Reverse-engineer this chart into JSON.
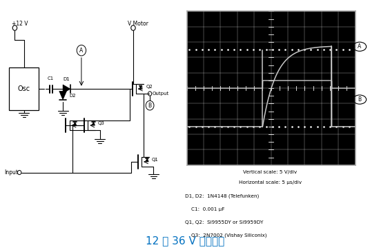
{
  "title": "12 至 36 V 电机驱动",
  "title_color": "#0070C0",
  "title_fontsize": 11,
  "components_text": [
    "D1, D2:  1N4148 (Telefunken)",
    "    C1:  0.001 μF",
    "Q1, Q2:  Si9955DY or Si9959DY",
    "    Q3:  2N7002 (Vishay Siliconix)"
  ],
  "scale_text_v": "Vertical scale: 5 V/div",
  "scale_text_h": "Horizontal scale: 5 μs/div",
  "osc_bg": "#000000",
  "osc_grid_color": "#ffffff",
  "osc_trace_color": "#c8c8c8",
  "fig_bg": "#ffffff"
}
